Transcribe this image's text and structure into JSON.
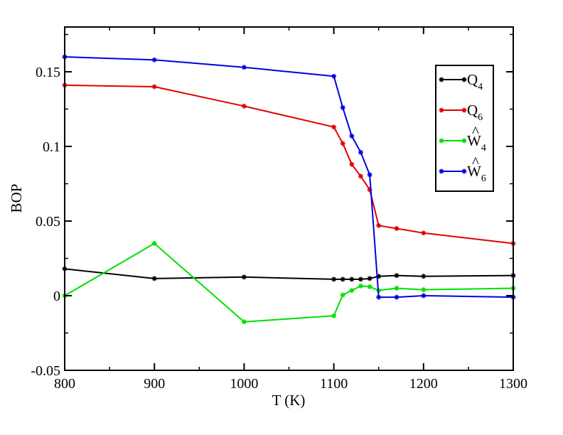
{
  "chart_data": {
    "type": "line",
    "xlabel": "T (K)",
    "ylabel": "BOP",
    "xlim": [
      800,
      1300
    ],
    "ylim": [
      -0.05,
      0.18
    ],
    "xticks": [
      800,
      900,
      1000,
      1100,
      1200,
      1300
    ],
    "xtick_labels": [
      "800",
      "900",
      "1000",
      "1100",
      "1200",
      "1300"
    ],
    "yticks": [
      -0.05,
      0,
      0.05,
      0.1,
      0.15
    ],
    "ytick_labels": [
      "-0.05",
      "0",
      "0.05",
      "0.1",
      "0.15"
    ],
    "grid": false,
    "legend_position": "top-right",
    "series": [
      {
        "name": "Q4",
        "label_main": "Q",
        "label_sub": "4",
        "label_hat": false,
        "color": "#000000",
        "x": [
          800,
          900,
          1000,
          1100,
          1110,
          1120,
          1130,
          1140,
          1150,
          1170,
          1200,
          1300
        ],
        "y": [
          0.018,
          0.0115,
          0.0125,
          0.011,
          0.011,
          0.011,
          0.011,
          0.0115,
          0.013,
          0.0135,
          0.013,
          0.0135
        ]
      },
      {
        "name": "Q6",
        "label_main": "Q",
        "label_sub": "6",
        "label_hat": false,
        "color": "#e00000",
        "x": [
          800,
          900,
          1000,
          1100,
          1110,
          1120,
          1130,
          1140,
          1150,
          1170,
          1200,
          1300
        ],
        "y": [
          0.141,
          0.14,
          0.127,
          0.113,
          0.102,
          0.088,
          0.08,
          0.071,
          0.047,
          0.045,
          0.042,
          0.035
        ]
      },
      {
        "name": "W4",
        "label_main": "W",
        "label_sub": "4",
        "label_hat": true,
        "color": "#00e000",
        "x": [
          800,
          900,
          1000,
          1100,
          1110,
          1120,
          1130,
          1140,
          1150,
          1170,
          1200,
          1300
        ],
        "y": [
          0.0,
          0.035,
          -0.0175,
          -0.0135,
          0.0005,
          0.0035,
          0.0065,
          0.006,
          0.0035,
          0.005,
          0.004,
          0.005
        ]
      },
      {
        "name": "W6",
        "label_main": "W",
        "label_sub": "6",
        "label_hat": true,
        "color": "#0000e0",
        "x": [
          800,
          900,
          1000,
          1100,
          1110,
          1120,
          1130,
          1140,
          1150,
          1170,
          1200,
          1300
        ],
        "y": [
          0.16,
          0.158,
          0.153,
          0.147,
          0.126,
          0.107,
          0.096,
          0.081,
          -0.001,
          -0.001,
          0.0,
          -0.001
        ]
      }
    ]
  }
}
